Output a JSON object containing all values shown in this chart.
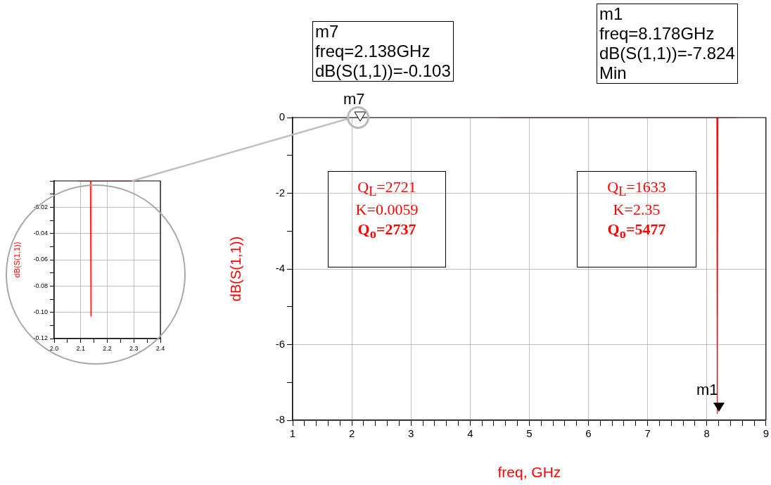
{
  "chart_data": [
    {
      "type": "line",
      "xlabel": "freq, GHz",
      "ylabel": "dB(S(1,1))",
      "series": [
        {
          "color": "#ff0000",
          "x": [
            4.5,
            8.17,
            8.178,
            8.186,
            8.5
          ],
          "values": [
            0,
            0,
            -7.824,
            0,
            0
          ]
        }
      ],
      "xlim": [
        1,
        9
      ],
      "xticks": [
        1,
        {
          "value": 1.2,
          "label": null
        },
        {
          "value": 1.4,
          "label": null
        },
        {
          "value": 1.6,
          "label": null
        },
        {
          "value": 1.8,
          "label": null
        },
        2,
        {
          "value": 2.2,
          "label": null
        },
        {
          "value": 2.4,
          "label": null
        },
        {
          "value": 2.6,
          "label": null
        },
        {
          "value": 2.8,
          "label": null
        },
        3,
        {
          "value": 3.2,
          "label": null
        },
        {
          "value": 3.4,
          "label": null
        },
        {
          "value": 3.6,
          "label": null
        },
        {
          "value": 3.8,
          "label": null
        },
        4,
        {
          "value": 4.2,
          "label": null
        },
        {
          "value": 4.4,
          "label": null
        },
        {
          "value": 4.6,
          "label": null
        },
        {
          "value": 4.8,
          "label": null
        },
        5,
        {
          "value": 5.2,
          "label": null
        },
        {
          "value": 5.4,
          "label": null
        },
        {
          "value": 5.6,
          "label": null
        },
        {
          "value": 5.8,
          "label": null
        },
        6,
        {
          "value": 6.2,
          "label": null
        },
        {
          "value": 6.4,
          "label": null
        },
        {
          "value": 6.6,
          "label": null
        },
        {
          "value": 6.8,
          "label": null
        },
        7,
        {
          "value": 7.2,
          "label": null
        },
        {
          "value": 7.4,
          "label": null
        },
        {
          "value": 7.6,
          "label": null
        },
        {
          "value": 7.8,
          "label": null
        },
        8,
        {
          "value": 8.2,
          "label": null
        },
        {
          "value": 8.4,
          "label": null
        },
        {
          "value": 8.6,
          "label": null
        },
        {
          "value": 8.8,
          "label": null
        },
        9
      ],
      "ylim": [
        -8,
        0
      ],
      "yticks": [
        -8,
        {
          "value": -7,
          "label": null
        },
        -6,
        {
          "value": -5,
          "label": null
        },
        -4,
        {
          "value": -3,
          "label": null
        },
        -2,
        {
          "value": -1,
          "label": null
        },
        0
      ],
      "grid": true,
      "annotations": [
        "m7\nfreq=2.138GHz\ndB(S(1,1))=-0.103",
        "m1\nfreq=8.178GHz\ndB(S(1,1))=-7.824\nMin",
        "Q$_{L}$=2721\nK=0.0059\nQ$_{o}$=2737",
        "Q$_{L}$=1633\nK=2.35\nQ$_{o}$=5477",
        "m7",
        "m1"
      ]
    },
    {
      "type": "line",
      "ylabel": "dB(S(1,1))",
      "series": [
        {
          "color": "#ff0000",
          "x": [
            2.09,
            2.136,
            2.138,
            2.14,
            2.32
          ],
          "values": [
            0,
            0,
            -0.103,
            0,
            0
          ]
        }
      ],
      "xlim": [
        2.0,
        2.4
      ],
      "xticks": [
        {
          "value": 2.0,
          "label": "2.0"
        },
        {
          "value": 2.05,
          "label": null
        },
        2.1,
        {
          "value": 2.15,
          "label": null
        },
        2.2,
        {
          "value": 2.25,
          "label": null
        },
        2.3,
        {
          "value": 2.35,
          "label": null
        },
        {
          "value": 2.4,
          "label": "2.4"
        }
      ],
      "ylim": [
        -0.12,
        0
      ],
      "yticks": [
        -0.12,
        {
          "value": -0.11,
          "label": null
        },
        {
          "value": -0.1,
          "label": "-0.10"
        },
        {
          "value": -0.09,
          "label": null
        },
        -0.08,
        {
          "value": -0.07,
          "label": null
        },
        -0.06,
        {
          "value": -0.05,
          "label": null
        },
        -0.04,
        {
          "value": -0.03,
          "label": null
        },
        -0.02,
        {
          "value": -0.01,
          "label": null
        },
        {
          "value": 0,
          "label": null
        }
      ],
      "grid": true
    }
  ]
}
